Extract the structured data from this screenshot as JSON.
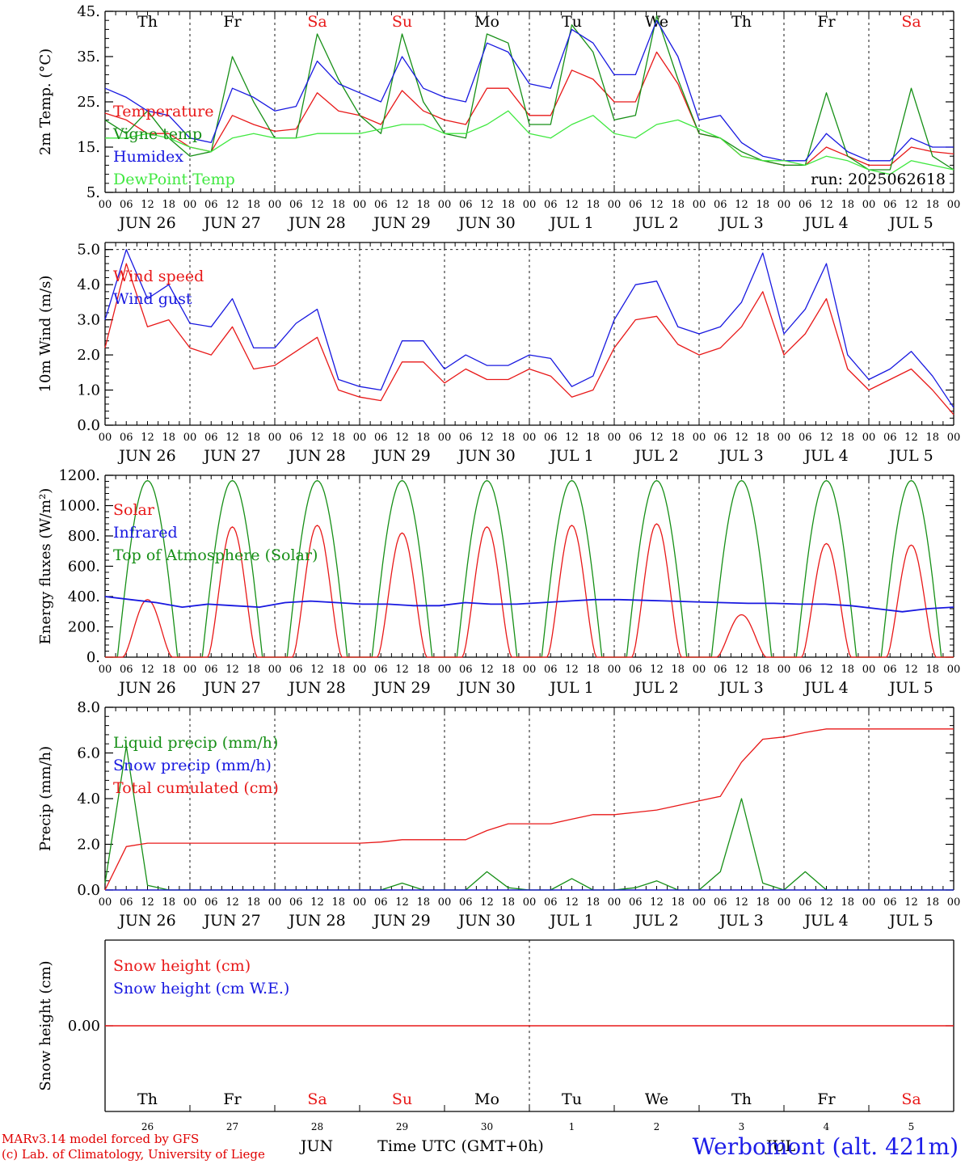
{
  "run_label": "run: 2025062618",
  "colors": {
    "red": "#e81818",
    "darkgreen": "#168f16",
    "blue": "#1818e0",
    "lightgreen": "#40e840",
    "weekend": "#e81818",
    "axis": "#000000"
  },
  "days": [
    {
      "dow": "Th",
      "date": "JUN 26",
      "num": "26",
      "weekend": false
    },
    {
      "dow": "Fr",
      "date": "JUN 27",
      "num": "27",
      "weekend": false
    },
    {
      "dow": "Sa",
      "date": "JUN 28",
      "num": "28",
      "weekend": true
    },
    {
      "dow": "Su",
      "date": "JUN 29",
      "num": "29",
      "weekend": true
    },
    {
      "dow": "Mo",
      "date": "JUN 30",
      "num": "30",
      "weekend": false
    },
    {
      "dow": "Tu",
      "date": "JUL  1",
      "num": "1",
      "weekend": false
    },
    {
      "dow": "We",
      "date": "JUL  2",
      "num": "2",
      "weekend": false
    },
    {
      "dow": "Th",
      "date": "JUL  3",
      "num": "3",
      "weekend": false
    },
    {
      "dow": "Fr",
      "date": "JUL  4",
      "num": "4",
      "weekend": false
    },
    {
      "dow": "Sa",
      "date": "JUL  5",
      "num": "5",
      "weekend": true
    }
  ],
  "hour_labels": [
    "00",
    "06",
    "12",
    "18"
  ],
  "hour_label_end": "00",
  "footer": {
    "credit1": "MARv3.14 model forced by GFS",
    "credit2": "(c) Lab. of Climatology, University of Liege",
    "month_jun": "JUN",
    "month_jul": "JUL",
    "time_label": "Time UTC (GMT+0h)",
    "station": "Werbomont (alt. 421m)"
  },
  "chart_data": [
    {
      "type": "line",
      "ylabel": "2m Temp. (°C)",
      "ylim": [
        5,
        45
      ],
      "yticks": [
        "5.",
        "15.",
        "25.",
        "35.",
        "45."
      ],
      "x_hours": [
        0,
        6,
        12,
        18,
        24,
        30,
        36,
        42,
        48,
        54,
        60,
        66,
        72,
        78,
        84,
        90,
        96,
        102,
        108,
        114,
        120,
        126,
        132,
        138,
        144,
        150,
        156,
        162,
        168,
        174,
        180,
        186,
        192,
        198,
        204,
        210,
        216,
        222,
        228,
        234,
        240
      ],
      "series": [
        {
          "name": "Temperature",
          "color": "red",
          "values": [
            22.5,
            21,
            18,
            18,
            15,
            14,
            22,
            20,
            18.5,
            19,
            27,
            23,
            22,
            20,
            27.5,
            23,
            21,
            20,
            28,
            28,
            22,
            22,
            32,
            30,
            25,
            25,
            36,
            29,
            18,
            17,
            13,
            12,
            11,
            11,
            15,
            13,
            11,
            11,
            15,
            14,
            13.5
          ]
        },
        {
          "name": "Vigne temp",
          "color": "darkgreen",
          "values": [
            21,
            18,
            23,
            17,
            13,
            14,
            35,
            25,
            17,
            17,
            40,
            30,
            22,
            18,
            40,
            25,
            18,
            17,
            40,
            38,
            20,
            20,
            42,
            36,
            21,
            22,
            44,
            30,
            18,
            17,
            14,
            12,
            11,
            11,
            27,
            13,
            10,
            10,
            28,
            13,
            10
          ]
        },
        {
          "name": "Humidex",
          "color": "blue",
          "values": [
            28,
            26,
            23,
            22,
            17,
            16,
            28,
            26,
            23,
            24,
            34,
            29,
            27,
            25,
            35,
            28,
            26,
            25,
            38,
            36,
            29,
            28,
            41,
            38,
            31,
            31,
            43,
            35,
            21,
            22,
            16,
            13,
            12,
            12,
            18,
            14,
            12,
            12,
            17,
            15,
            15
          ]
        },
        {
          "name": "DewPoint Temp",
          "color": "lightgreen",
          "values": [
            17,
            17,
            18,
            17,
            15,
            14,
            17,
            18,
            17,
            17,
            18,
            18,
            18,
            19,
            20,
            20,
            18,
            18,
            20,
            23,
            18,
            17,
            20,
            22,
            18,
            17,
            20,
            21,
            19,
            17,
            13,
            12,
            12,
            11,
            13,
            12,
            10,
            9,
            12,
            11,
            10
          ]
        }
      ]
    },
    {
      "type": "line",
      "ylabel": "10m Wind (m/s)",
      "ylim": [
        0,
        5.2
      ],
      "yticks": [
        "0.0",
        "1.0",
        "2.0",
        "3.0",
        "4.0",
        "5.0"
      ],
      "x_hours": [
        0,
        6,
        12,
        18,
        24,
        30,
        36,
        42,
        48,
        54,
        60,
        66,
        72,
        78,
        84,
        90,
        96,
        102,
        108,
        114,
        120,
        126,
        132,
        138,
        144,
        150,
        156,
        162,
        168,
        174,
        180,
        186,
        192,
        198,
        204,
        210,
        216,
        222,
        228,
        234,
        240
      ],
      "series": [
        {
          "name": "Wind speed",
          "color": "red",
          "values": [
            2.2,
            4.6,
            2.8,
            3.0,
            2.2,
            2.0,
            2.8,
            1.6,
            1.7,
            2.1,
            2.5,
            1.0,
            0.8,
            0.7,
            1.8,
            1.8,
            1.2,
            1.6,
            1.3,
            1.3,
            1.6,
            1.4,
            0.8,
            1.0,
            2.2,
            3.0,
            3.1,
            2.3,
            2.0,
            2.2,
            2.8,
            3.8,
            2.0,
            2.6,
            3.6,
            1.6,
            1.0,
            1.3,
            1.6,
            1.0,
            0.3
          ]
        },
        {
          "name": "Wind gust",
          "color": "blue",
          "values": [
            3.0,
            5.0,
            3.6,
            4.0,
            2.9,
            2.8,
            3.6,
            2.2,
            2.2,
            2.9,
            3.3,
            1.3,
            1.1,
            1.0,
            2.4,
            2.4,
            1.6,
            2.0,
            1.7,
            1.7,
            2.0,
            1.9,
            1.1,
            1.4,
            3.0,
            4.0,
            4.1,
            2.8,
            2.6,
            2.8,
            3.5,
            4.9,
            2.6,
            3.3,
            4.6,
            2.0,
            1.3,
            1.6,
            2.1,
            1.4,
            0.5
          ]
        }
      ]
    },
    {
      "type": "line",
      "ylabel": "Energy fluxes (W/m²)",
      "ylim": [
        0,
        1200
      ],
      "yticks": [
        "0.",
        "200.",
        "400.",
        "600.",
        "800.",
        "1000.",
        "1200."
      ],
      "solar_peaks": [
        380,
        860,
        870,
        820,
        860,
        870,
        880,
        280,
        750,
        740
      ],
      "toa_peak": 1165,
      "infrared_values": [
        400,
        380,
        360,
        330,
        350,
        340,
        330,
        360,
        370,
        360,
        350,
        350,
        340,
        340,
        360,
        350,
        350,
        360,
        370,
        380,
        380,
        375,
        370,
        365,
        360,
        355,
        355,
        350,
        350,
        340,
        320,
        300,
        320,
        330
      ],
      "series": [
        {
          "name": "Solar",
          "color": "red"
        },
        {
          "name": "Infrared",
          "color": "blue"
        },
        {
          "name": "Top of Atmosphere (Solar)",
          "color": "darkgreen"
        }
      ]
    },
    {
      "type": "line",
      "ylabel": "Precip (mm/h)",
      "ylim": [
        0,
        8
      ],
      "yticks": [
        "0.0",
        "2.0",
        "4.0",
        "6.0",
        "8.0"
      ],
      "x_hours": [
        0,
        6,
        12,
        18,
        24,
        30,
        36,
        42,
        48,
        54,
        60,
        66,
        72,
        78,
        84,
        90,
        96,
        102,
        108,
        114,
        120,
        126,
        132,
        138,
        144,
        150,
        156,
        162,
        168,
        174,
        180,
        186,
        192,
        198,
        204,
        210,
        216,
        222,
        228,
        234,
        240
      ],
      "series": [
        {
          "name": "Liquid precip (mm/h)",
          "color": "darkgreen",
          "values": [
            0.3,
            6.3,
            0.2,
            0,
            0,
            0,
            0,
            0,
            0,
            0,
            0,
            0,
            0,
            0,
            0.3,
            0,
            0,
            0,
            0.8,
            0.1,
            0,
            0,
            0.5,
            0,
            0,
            0.1,
            0.4,
            0,
            0,
            0.8,
            4.0,
            0.3,
            0,
            0.8,
            0,
            0,
            0,
            0,
            0,
            0,
            0
          ]
        },
        {
          "name": "Snow precip (mm/h)",
          "color": "blue",
          "values": [
            0,
            0,
            0,
            0,
            0,
            0,
            0,
            0,
            0,
            0,
            0,
            0,
            0,
            0,
            0,
            0,
            0,
            0,
            0,
            0,
            0,
            0,
            0,
            0,
            0,
            0,
            0,
            0,
            0,
            0,
            0,
            0,
            0,
            0,
            0,
            0,
            0,
            0,
            0,
            0,
            0
          ]
        },
        {
          "name": "Total cumulated (cm)",
          "color": "red",
          "values": [
            0,
            1.9,
            2.05,
            2.05,
            2.05,
            2.05,
            2.05,
            2.05,
            2.05,
            2.05,
            2.05,
            2.05,
            2.05,
            2.1,
            2.2,
            2.2,
            2.2,
            2.2,
            2.6,
            2.9,
            2.9,
            2.9,
            3.1,
            3.3,
            3.3,
            3.4,
            3.5,
            3.7,
            3.9,
            4.1,
            5.6,
            6.6,
            6.7,
            6.9,
            7.05,
            7.05,
            7.05,
            7.05,
            7.05,
            7.05,
            7.05
          ]
        }
      ]
    },
    {
      "type": "line",
      "ylabel": "Snow height (cm)",
      "yticks": [
        "0.00"
      ],
      "series": [
        {
          "name": "Snow height (cm)",
          "color": "red"
        },
        {
          "name": "Snow height (cm W.E.)",
          "color": "blue"
        }
      ]
    }
  ]
}
